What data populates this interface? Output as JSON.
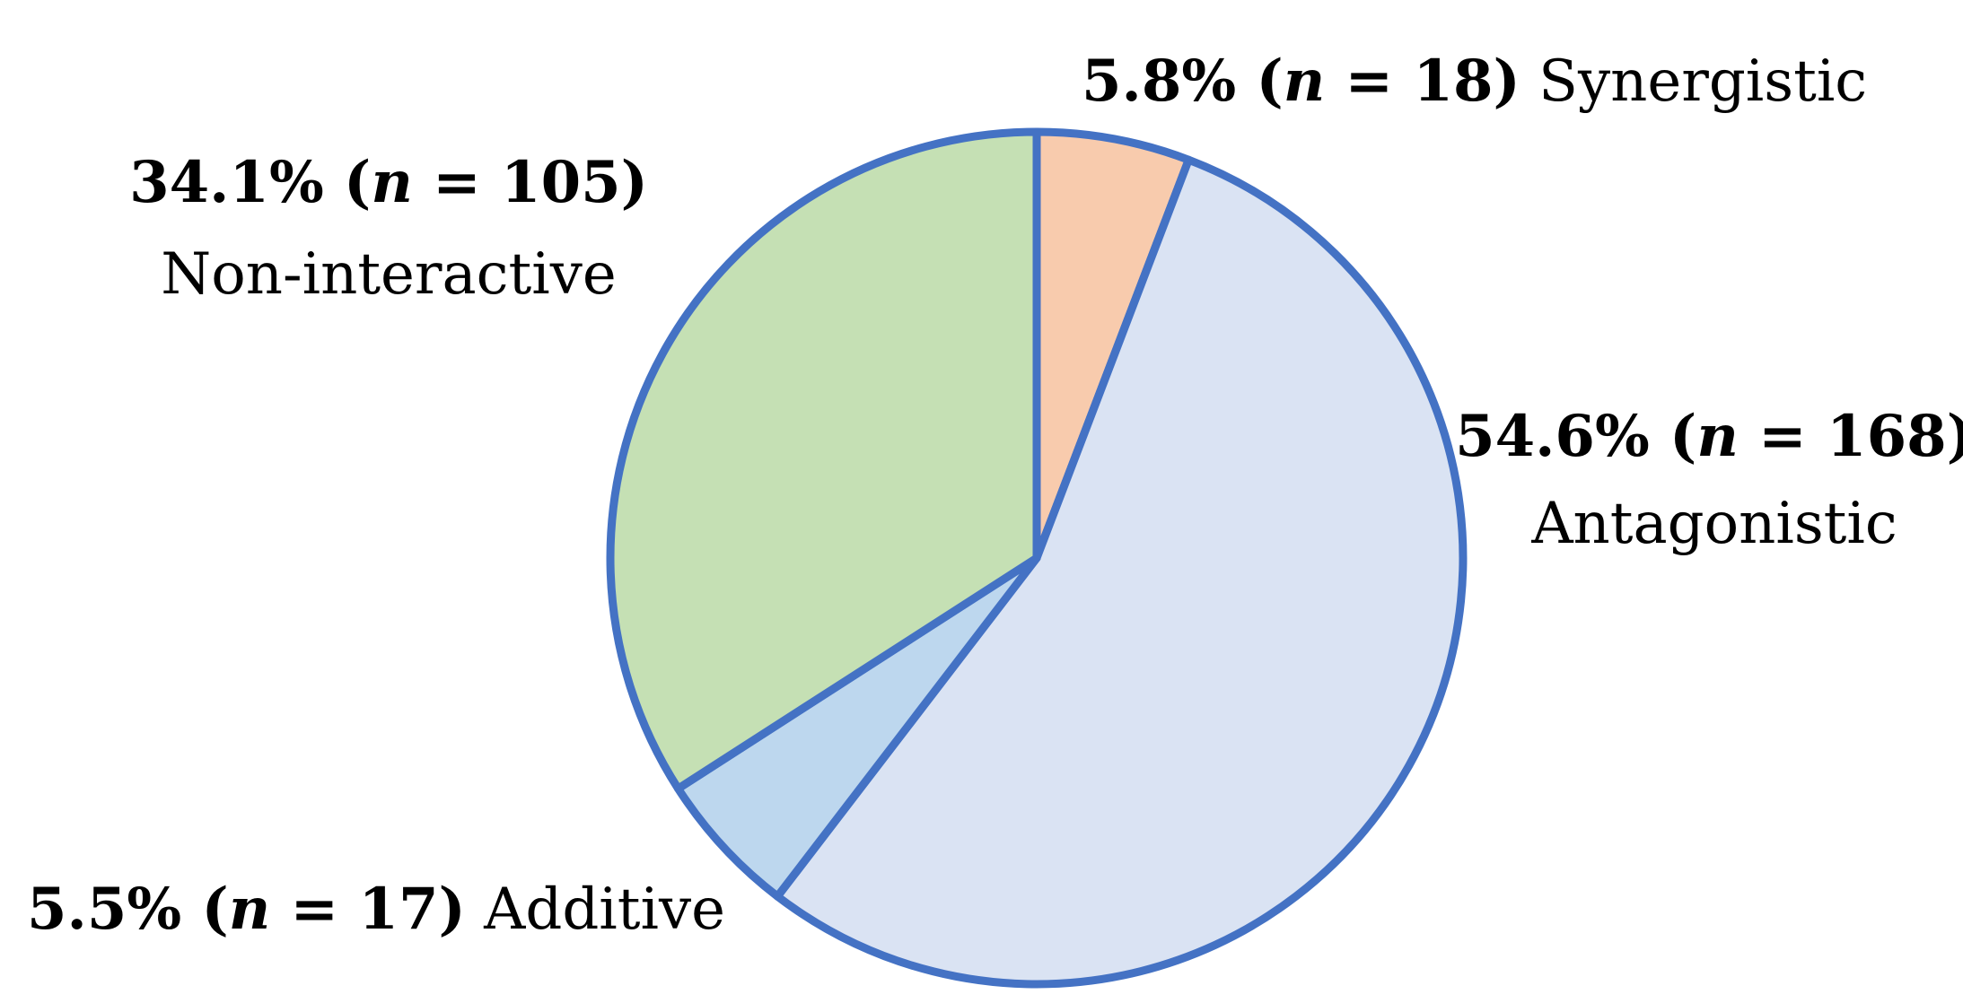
{
  "chart_data": {
    "type": "pie",
    "start_angle_deg": 0,
    "direction": "clockwise",
    "edge_color": "#4472C4",
    "slices": [
      {
        "key": "synergistic",
        "name": "Synergistic",
        "percent": "5.8%",
        "n_label": "n",
        "eq": " = ",
        "n": 18,
        "value": 5.8,
        "color": "#F8CBAD"
      },
      {
        "key": "antagonistic",
        "name": "Antagonistic",
        "percent": "54.6%",
        "n_label": "n",
        "eq": " = ",
        "n": 168,
        "value": 54.6,
        "color": "#DAE3F3"
      },
      {
        "key": "additive",
        "name": "Additive",
        "percent": "5.5%",
        "n_label": "n",
        "eq": " = ",
        "n": 17,
        "value": 5.5,
        "color": "#BDD7EE"
      },
      {
        "key": "non-interactive",
        "name": "Non-interactive",
        "percent": "34.1%",
        "n_label": "n",
        "eq": " = ",
        "n": 105,
        "value": 34.1,
        "color": "#C5E0B4"
      }
    ]
  }
}
